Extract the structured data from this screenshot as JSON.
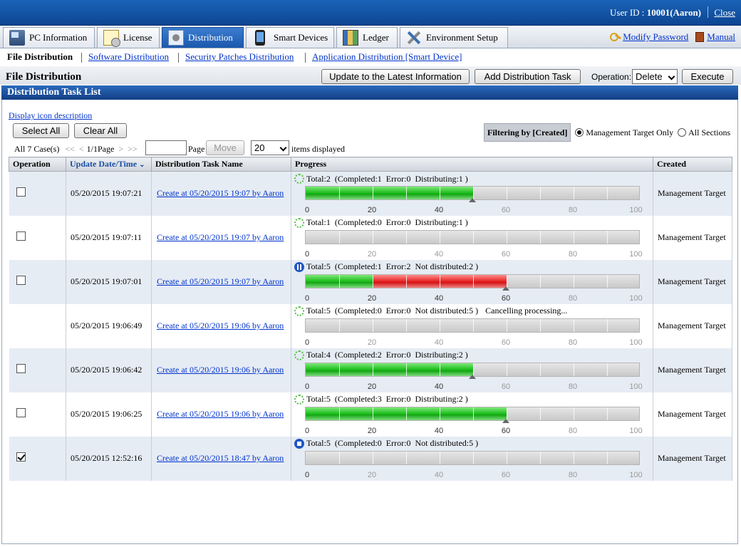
{
  "header": {
    "user_label": "User ID : ",
    "user_id": "10001(Aaron)",
    "close_label": "Close"
  },
  "tabs": [
    {
      "label": "PC Information",
      "icon": "pc-icon"
    },
    {
      "label": "License",
      "icon": "license-icon"
    },
    {
      "label": "Distribution",
      "icon": "distribution-icon",
      "active": true
    },
    {
      "label": "Smart Devices",
      "icon": "smartphone-icon"
    },
    {
      "label": "Ledger",
      "icon": "ledger-icon"
    },
    {
      "label": "Environment Setup",
      "icon": "tools-icon"
    }
  ],
  "top_links": {
    "modify_password": "Modify Password",
    "manual": "Manual"
  },
  "subnav": {
    "current": "File Distribution",
    "software": "Software Distribution",
    "security": "Security Patches Distribution",
    "application": "Application Distribution [Smart Device]"
  },
  "toolbar": {
    "page_title": "File Distribution",
    "update_label": "Update to the Latest Information",
    "add_task_label": "Add Distribution Task",
    "operation_label": "Operation:",
    "operation_value": "Delete",
    "execute_label": "Execute"
  },
  "section_title": "Distribution Task List",
  "icon_desc_link": "Display icon description",
  "select_all": "Select All",
  "clear_all": "Clear All",
  "filter": {
    "label": "Filtering by [Created]",
    "option1": "Management Target Only",
    "option2": "All Sections",
    "selected": "Management Target Only"
  },
  "pager": {
    "count": "All 7 Case(s)",
    "first": "<<",
    "prev": "<",
    "page_info": "1/1Page",
    "next": ">",
    "last": ">>",
    "page_label": "Page",
    "move_label": "Move",
    "per_page": "20",
    "items_label": "items displayed"
  },
  "columns": {
    "operation": "Operation",
    "updated": "Update Date/Time",
    "name": "Distribution Task Name",
    "progress": "Progress",
    "created": "Created"
  },
  "tick_labels": [
    "0",
    "20",
    "40",
    "60",
    "80",
    "100"
  ],
  "rows": [
    {
      "checkbox": true,
      "checked": false,
      "updated": "05/20/2015 19:07:21",
      "name": "Create at 05/20/2015 19:07 by Aaron",
      "status_icon": "spinner",
      "status": "Total:2  (Completed:1  Error:0  Distributing:1 )",
      "extra": "",
      "green_pct": 50,
      "red_pct": 0,
      "marker_pct": 50,
      "created": "Management Target"
    },
    {
      "checkbox": true,
      "checked": false,
      "updated": "05/20/2015 19:07:11",
      "name": "Create at 05/20/2015 19:07 by Aaron",
      "status_icon": "spinner",
      "status": "Total:1  (Completed:0  Error:0  Distributing:1 )",
      "extra": "",
      "green_pct": 0,
      "red_pct": 0,
      "marker_pct": null,
      "created": "Management Target"
    },
    {
      "checkbox": true,
      "checked": false,
      "updated": "05/20/2015 19:07:01",
      "name": "Create at 05/20/2015 19:07 by Aaron",
      "status_icon": "pause",
      "status": "Total:5  (Completed:1  Error:2  Not distributed:2 )",
      "extra": "",
      "green_pct": 20,
      "red_pct": 40,
      "marker_pct": 60,
      "created": "Management Target"
    },
    {
      "checkbox": false,
      "checked": false,
      "updated": "05/20/2015 19:06:49",
      "name": "Create at 05/20/2015 19:06 by Aaron",
      "status_icon": "spinner",
      "status": "Total:5  (Completed:0  Error:0  Not distributed:5 )",
      "extra": "Cancelling processing...",
      "green_pct": 0,
      "red_pct": 0,
      "marker_pct": null,
      "created": "Management Target"
    },
    {
      "checkbox": true,
      "checked": false,
      "updated": "05/20/2015 19:06:42",
      "name": "Create at 05/20/2015 19:06 by Aaron",
      "status_icon": "spinner",
      "status": "Total:4  (Completed:2  Error:0  Distributing:2 )",
      "extra": "",
      "green_pct": 50,
      "red_pct": 0,
      "marker_pct": 50,
      "created": "Management Target"
    },
    {
      "checkbox": true,
      "checked": false,
      "updated": "05/20/2015 19:06:25",
      "name": "Create at 05/20/2015 19:06 by Aaron",
      "status_icon": "spinner",
      "status": "Total:5  (Completed:3  Error:0  Distributing:2 )",
      "extra": "",
      "green_pct": 60,
      "red_pct": 0,
      "marker_pct": 60,
      "created": "Management Target"
    },
    {
      "checkbox": true,
      "checked": true,
      "updated": "05/20/2015 12:52:16",
      "name": "Create at 05/20/2015 18:47 by Aaron",
      "status_icon": "stop",
      "status": "Total:5  (Completed:0  Error:0  Not distributed:5 )",
      "extra": "",
      "green_pct": 0,
      "red_pct": 0,
      "marker_pct": null,
      "created": "Management Target"
    }
  ]
}
